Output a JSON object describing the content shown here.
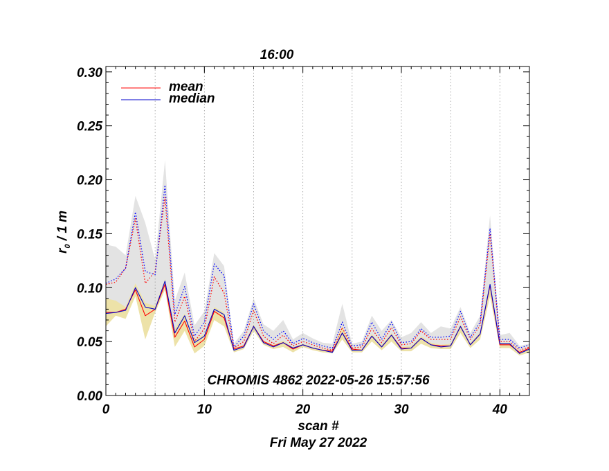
{
  "chart_data": {
    "type": "line",
    "title": "16:00",
    "xlabel": "scan #",
    "xlabel_sub": "Fri May 27 2022",
    "ylabel_main": "r",
    "ylabel_sub": "0",
    "ylabel_rest": " / 1 m",
    "annotation": "CHROMIS 4862 2022-05-26 15:57:56",
    "xlim": [
      0,
      43
    ],
    "ylim": [
      0,
      0.305
    ],
    "xticks": [
      0,
      10,
      20,
      30,
      40
    ],
    "xtick_labels": [
      "0",
      "10",
      "20",
      "30",
      "40"
    ],
    "yticks": [
      0,
      0.05,
      0.1,
      0.15,
      0.2,
      0.25,
      0.3
    ],
    "ytick_labels": [
      "0.00",
      "0.05",
      "0.10",
      "0.15",
      "0.20",
      "0.25",
      "0.30"
    ],
    "vgrid": [
      5,
      10,
      15,
      20,
      25,
      30,
      35,
      40
    ],
    "legend_position": "top-left",
    "x": [
      0,
      1,
      2,
      3,
      4,
      5,
      6,
      7,
      8,
      9,
      10,
      11,
      12,
      13,
      14,
      15,
      16,
      17,
      18,
      19,
      20,
      21,
      22,
      23,
      24,
      25,
      26,
      27,
      28,
      29,
      30,
      31,
      32,
      33,
      34,
      35,
      36,
      37,
      38,
      39,
      40,
      41,
      42,
      43
    ],
    "series": [
      {
        "name": "mean",
        "color": "#ff0000",
        "style": "solid",
        "values": [
          0.077,
          0.077,
          0.08,
          0.098,
          0.074,
          0.08,
          0.103,
          0.054,
          0.069,
          0.045,
          0.052,
          0.078,
          0.072,
          0.043,
          0.046,
          0.064,
          0.05,
          0.046,
          0.049,
          0.043,
          0.047,
          0.044,
          0.042,
          0.041,
          0.058,
          0.043,
          0.042,
          0.055,
          0.045,
          0.056,
          0.044,
          0.044,
          0.053,
          0.047,
          0.046,
          0.046,
          0.064,
          0.047,
          0.057,
          0.102,
          0.047,
          0.047,
          0.04,
          0.044
        ]
      },
      {
        "name": "median",
        "color": "#0000cc",
        "style": "solid",
        "values": [
          0.076,
          0.077,
          0.079,
          0.1,
          0.082,
          0.08,
          0.106,
          0.058,
          0.074,
          0.049,
          0.055,
          0.08,
          0.075,
          0.042,
          0.045,
          0.064,
          0.049,
          0.045,
          0.049,
          0.044,
          0.047,
          0.044,
          0.042,
          0.04,
          0.058,
          0.042,
          0.042,
          0.055,
          0.045,
          0.056,
          0.043,
          0.044,
          0.053,
          0.047,
          0.045,
          0.046,
          0.064,
          0.047,
          0.057,
          0.103,
          0.048,
          0.048,
          0.039,
          0.043
        ]
      },
      {
        "name": "",
        "color": "#ff0000",
        "style": "dotted",
        "values": [
          0.103,
          0.105,
          0.118,
          0.164,
          0.104,
          0.115,
          0.184,
          0.068,
          0.092,
          0.05,
          0.062,
          0.11,
          0.095,
          0.044,
          0.05,
          0.079,
          0.055,
          0.048,
          0.056,
          0.046,
          0.05,
          0.047,
          0.044,
          0.042,
          0.063,
          0.044,
          0.045,
          0.062,
          0.049,
          0.063,
          0.047,
          0.048,
          0.06,
          0.052,
          0.052,
          0.052,
          0.073,
          0.052,
          0.065,
          0.15,
          0.05,
          0.05,
          0.042,
          0.045
        ]
      },
      {
        "name": "",
        "color": "#0000ff",
        "style": "dotted",
        "values": [
          0.104,
          0.108,
          0.118,
          0.17,
          0.115,
          0.112,
          0.195,
          0.075,
          0.101,
          0.055,
          0.068,
          0.122,
          0.111,
          0.045,
          0.055,
          0.085,
          0.06,
          0.052,
          0.06,
          0.048,
          0.053,
          0.049,
          0.046,
          0.044,
          0.068,
          0.046,
          0.047,
          0.068,
          0.052,
          0.068,
          0.049,
          0.05,
          0.062,
          0.054,
          0.054,
          0.055,
          0.078,
          0.054,
          0.068,
          0.155,
          0.052,
          0.052,
          0.044,
          0.047
        ]
      }
    ],
    "band_upper": {
      "color": "#e3e3e3",
      "high": [
        0.14,
        0.138,
        0.13,
        0.185,
        0.16,
        0.126,
        0.218,
        0.088,
        0.114,
        0.065,
        0.078,
        0.132,
        0.12,
        0.048,
        0.06,
        0.09,
        0.066,
        0.06,
        0.07,
        0.052,
        0.058,
        0.053,
        0.049,
        0.048,
        0.085,
        0.048,
        0.05,
        0.074,
        0.06,
        0.07,
        0.054,
        0.058,
        0.068,
        0.058,
        0.064,
        0.062,
        0.082,
        0.058,
        0.074,
        0.167,
        0.056,
        0.058,
        0.046,
        0.048
      ],
      "low": [
        0.078,
        0.079,
        0.082,
        0.104,
        0.086,
        0.083,
        0.108,
        0.062,
        0.076,
        0.052,
        0.057,
        0.082,
        0.077,
        0.044,
        0.047,
        0.066,
        0.051,
        0.047,
        0.051,
        0.045,
        0.048,
        0.045,
        0.043,
        0.042,
        0.06,
        0.044,
        0.043,
        0.057,
        0.047,
        0.058,
        0.045,
        0.046,
        0.055,
        0.049,
        0.047,
        0.048,
        0.066,
        0.049,
        0.059,
        0.105,
        0.049,
        0.049,
        0.041,
        0.044
      ]
    },
    "band_lower": {
      "color": "#ede2a8",
      "high": [
        0.09,
        0.088,
        0.082,
        0.104,
        0.086,
        0.083,
        0.108,
        0.062,
        0.076,
        0.052,
        0.057,
        0.082,
        0.077,
        0.044,
        0.047,
        0.066,
        0.051,
        0.047,
        0.051,
        0.045,
        0.048,
        0.045,
        0.043,
        0.042,
        0.064,
        0.044,
        0.043,
        0.057,
        0.047,
        0.058,
        0.045,
        0.046,
        0.055,
        0.049,
        0.047,
        0.048,
        0.066,
        0.049,
        0.059,
        0.105,
        0.049,
        0.049,
        0.041,
        0.044
      ],
      "low": [
        0.064,
        0.074,
        0.071,
        0.092,
        0.052,
        0.077,
        0.098,
        0.045,
        0.06,
        0.039,
        0.046,
        0.07,
        0.064,
        0.04,
        0.043,
        0.06,
        0.047,
        0.043,
        0.045,
        0.04,
        0.045,
        0.042,
        0.04,
        0.039,
        0.052,
        0.04,
        0.04,
        0.05,
        0.042,
        0.05,
        0.041,
        0.041,
        0.048,
        0.044,
        0.043,
        0.043,
        0.058,
        0.044,
        0.052,
        0.092,
        0.044,
        0.044,
        0.037,
        0.04
      ]
    }
  }
}
